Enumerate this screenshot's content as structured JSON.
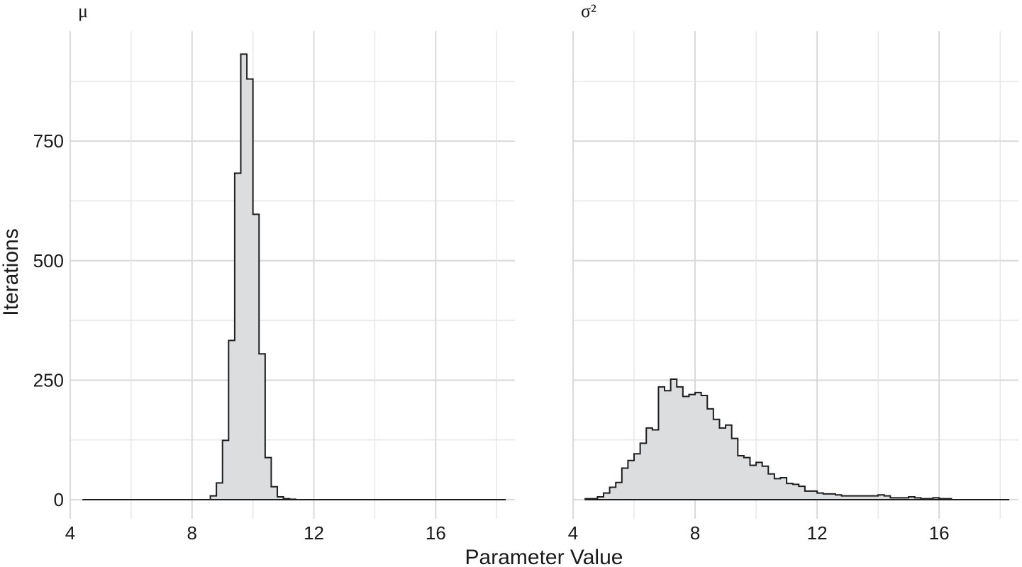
{
  "chart_data": {
    "type": "histogram",
    "xlabel": "Parameter Value",
    "ylabel": "Iterations",
    "grid": true,
    "shared_y": true,
    "ylim": [
      -40,
      980
    ],
    "y_ticks": [
      0,
      250,
      500,
      750
    ],
    "y_tick_labels": [
      "0",
      "250",
      "500",
      "750"
    ],
    "facets": [
      {
        "title": "μ",
        "xlim": [
          4,
          18.6
        ],
        "x_ticks": [
          4,
          8,
          12,
          16
        ],
        "x_tick_labels": [
          "4",
          "8",
          "12",
          "16"
        ],
        "bins": {
          "edges": [
            4.4,
            8.6,
            8.8,
            9.0,
            9.2,
            9.4,
            9.6,
            9.8,
            10.0,
            10.2,
            10.4,
            10.6,
            10.8,
            11.0,
            11.2,
            11.4,
            11.6,
            18.3
          ],
          "counts": [
            0,
            8,
            35,
            124,
            333,
            683,
            932,
            880,
            597,
            305,
            88,
            27,
            6,
            2,
            1,
            0,
            0
          ]
        }
      },
      {
        "title": "σ²",
        "xlim": [
          4,
          18.6
        ],
        "x_ticks": [
          4,
          8,
          12,
          16
        ],
        "x_tick_labels": [
          "4",
          "8",
          "12",
          "16"
        ],
        "bins": {
          "edges": [
            4.4,
            4.8,
            5.0,
            5.2,
            5.4,
            5.6,
            5.8,
            6.0,
            6.2,
            6.4,
            6.6,
            6.8,
            7.0,
            7.2,
            7.4,
            7.6,
            7.8,
            8.0,
            8.2,
            8.4,
            8.6,
            8.8,
            9.0,
            9.2,
            9.4,
            9.6,
            9.8,
            10.0,
            10.2,
            10.4,
            10.6,
            10.8,
            11.0,
            11.2,
            11.4,
            11.6,
            11.8,
            12.0,
            12.2,
            12.4,
            12.6,
            12.8,
            13.0,
            13.2,
            13.4,
            13.6,
            13.8,
            14.0,
            14.2,
            14.4,
            14.6,
            14.8,
            15.0,
            15.2,
            15.4,
            15.6,
            15.8,
            16.0,
            16.2,
            16.4,
            16.6,
            16.8,
            17.0,
            17.2,
            17.4,
            17.6,
            17.8,
            18.3
          ],
          "counts": [
            2,
            6,
            14,
            26,
            36,
            66,
            82,
            96,
            118,
            150,
            146,
            236,
            228,
            252,
            236,
            216,
            220,
            224,
            218,
            190,
            168,
            150,
            156,
            128,
            92,
            88,
            72,
            78,
            70,
            54,
            44,
            46,
            34,
            32,
            28,
            18,
            18,
            14,
            12,
            12,
            10,
            8,
            8,
            8,
            8,
            8,
            8,
            10,
            8,
            4,
            4,
            4,
            6,
            4,
            2,
            2,
            4,
            2,
            2,
            0,
            0,
            0,
            0,
            0,
            0,
            0,
            0
          ]
        }
      }
    ]
  }
}
